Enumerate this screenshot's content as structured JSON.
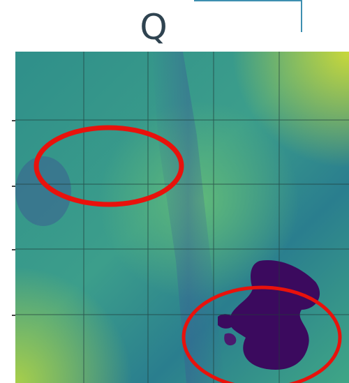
{
  "title": "Q",
  "colors": {
    "frame": "#3d8fb0",
    "highlight": "#e8120c",
    "colormap_low": "#3b0a5e",
    "colormap_mid": "#2f8f8a",
    "colormap_high": "#c9d83a"
  },
  "annotations": [
    {
      "shape": "ellipse",
      "color": "red"
    },
    {
      "shape": "ellipse",
      "color": "red"
    }
  ]
}
